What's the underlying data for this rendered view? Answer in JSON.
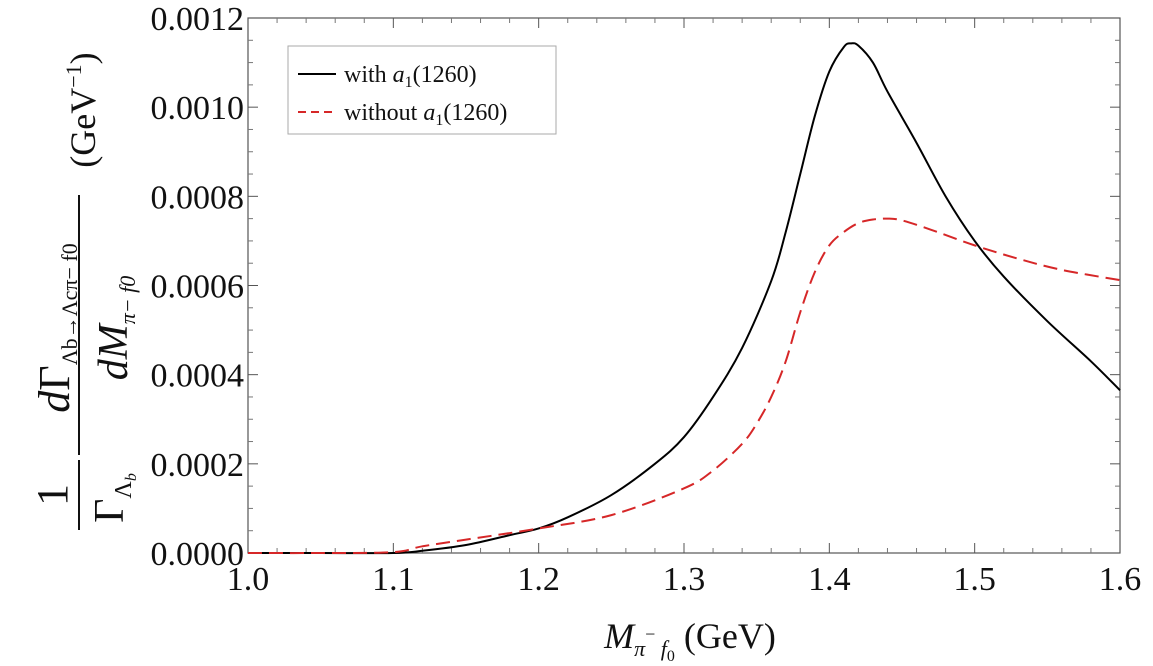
{
  "chart_data": {
    "type": "line",
    "title": "",
    "xlabel": {
      "main": "M",
      "sub1": "π",
      "sup": "−",
      "sub2": " f",
      "sub3": "0",
      "unit": " (GeV)"
    },
    "ylabel": {
      "one": "1",
      "gamma": "Γ",
      "lambda_b": "Λ",
      "lambda_b_sub": "b",
      "numerator_d": "d",
      "numerator_gamma": "Γ",
      "numerator_sub": "Λb→Λcπ− f0",
      "denominator_d": "d",
      "denominator_m": "M",
      "denominator_sub": "π− f0",
      "unit": "(GeV",
      "unit_sup": "−1",
      "unit_close": ")"
    },
    "xlim": [
      1.0,
      1.6
    ],
    "ylim": [
      0.0,
      0.0012
    ],
    "x_ticks": [
      "1.0",
      "1.1",
      "1.2",
      "1.3",
      "1.4",
      "1.5",
      "1.6"
    ],
    "y_ticks": [
      "0.0000",
      "0.0002",
      "0.0004",
      "0.0006",
      "0.0008",
      "0.0010",
      "0.0012"
    ],
    "grid": false,
    "legend_position": "top-left",
    "series": [
      {
        "name": "with a1(1260)",
        "legend": {
          "prefix": "with ",
          "italic": "a",
          "sub": "1",
          "suffix": "(1260)"
        },
        "style": "solid",
        "color": "#000000",
        "x": [
          1.0,
          1.05,
          1.1,
          1.12,
          1.15,
          1.18,
          1.2,
          1.22,
          1.25,
          1.28,
          1.3,
          1.32,
          1.34,
          1.36,
          1.37,
          1.38,
          1.39,
          1.4,
          1.41,
          1.415,
          1.42,
          1.43,
          1.44,
          1.46,
          1.48,
          1.5,
          1.52,
          1.55,
          1.58,
          1.6
        ],
        "y": [
          0.0,
          0.0,
          0.0,
          5e-06,
          1.8e-05,
          4e-05,
          5.5e-05,
          8e-05,
          0.00013,
          0.0002,
          0.00026,
          0.00035,
          0.00046,
          0.00061,
          0.00072,
          0.00085,
          0.00098,
          0.00108,
          0.001135,
          0.001143,
          0.001138,
          0.0011,
          0.001035,
          0.00092,
          0.0008,
          0.0007,
          0.00062,
          0.00052,
          0.00043,
          0.000365
        ]
      },
      {
        "name": "without a1(1260)",
        "legend": {
          "prefix": "without ",
          "italic": "a",
          "sub": "1",
          "suffix": "(1260)"
        },
        "style": "dashed",
        "color": "#d62728",
        "x": [
          1.0,
          1.05,
          1.1,
          1.12,
          1.15,
          1.2,
          1.25,
          1.3,
          1.32,
          1.34,
          1.35,
          1.36,
          1.37,
          1.38,
          1.39,
          1.4,
          1.41,
          1.42,
          1.43,
          1.44,
          1.45,
          1.47,
          1.5,
          1.53,
          1.56,
          1.6
        ],
        "y": [
          0.0,
          0.0,
          2e-06,
          1.5e-05,
          3e-05,
          5.5e-05,
          8.5e-05,
          0.000145,
          0.000185,
          0.000245,
          0.00029,
          0.00035,
          0.00043,
          0.00054,
          0.00063,
          0.00069,
          0.00072,
          0.00074,
          0.000748,
          0.00075,
          0.000746,
          0.000725,
          0.00069,
          0.00066,
          0.000635,
          0.000612
        ]
      }
    ]
  }
}
